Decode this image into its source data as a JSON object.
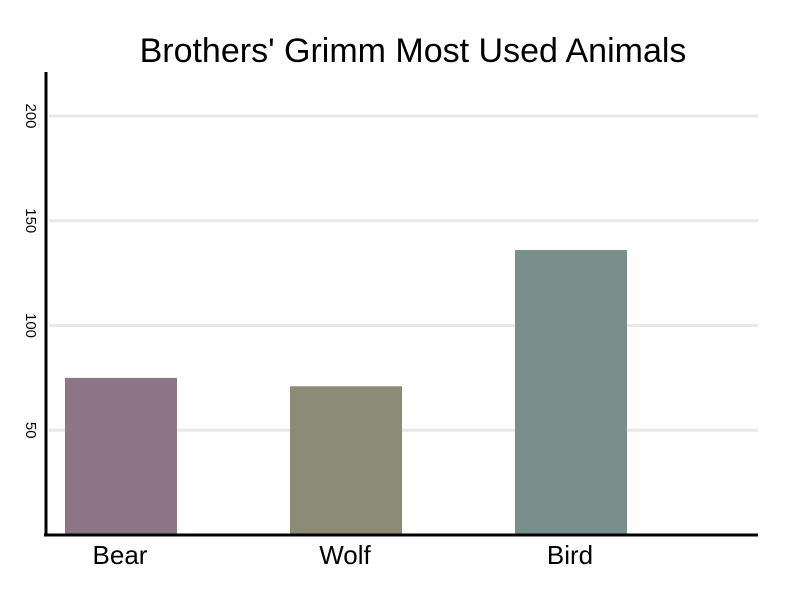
{
  "chart_data": {
    "type": "bar",
    "title": "Brothers' Grimm Most Used Animals",
    "xlabel": "",
    "ylabel": "",
    "categories": [
      "Bear",
      "Wolf",
      "Bird"
    ],
    "values": [
      75,
      71,
      136
    ],
    "colors": [
      "#8e7689",
      "#8c8b75",
      "#788f8b"
    ],
    "yticks": [
      50,
      100,
      150,
      200
    ],
    "ytick_labels": [
      "50",
      "100",
      "150",
      "200"
    ],
    "ylim": [
      0,
      220
    ],
    "grid": true,
    "gridline_color": "#e8e8e8",
    "axis_color": "#000000",
    "legend": "none"
  }
}
